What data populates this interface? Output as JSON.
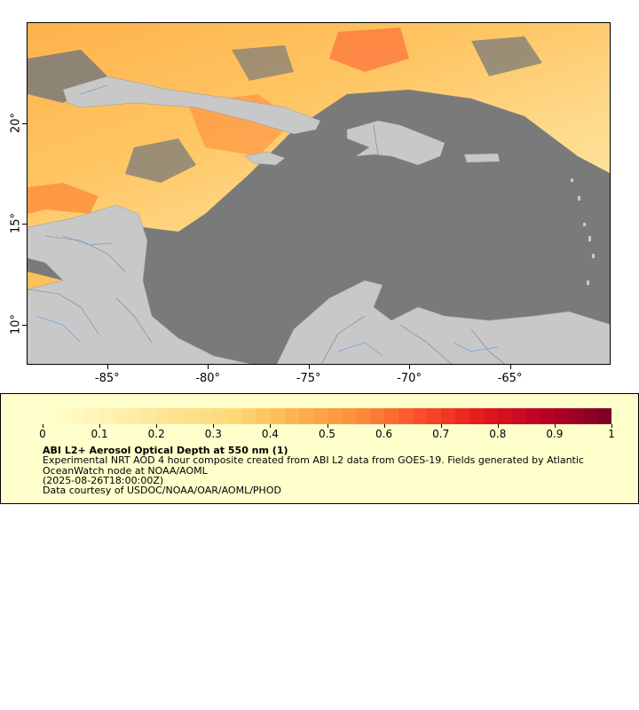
{
  "map": {
    "y_ticks": [
      {
        "label": "20°",
        "lat": 20
      },
      {
        "label": "15°",
        "lat": 15
      },
      {
        "label": "10°",
        "lat": 10
      }
    ],
    "x_ticks": [
      {
        "label": "-85°",
        "lon": -85
      },
      {
        "label": "-80°",
        "lon": -80
      },
      {
        "label": "-75°",
        "lon": -75
      },
      {
        "label": "-70°",
        "lon": -70
      },
      {
        "label": "-65°",
        "lon": -65
      }
    ],
    "lon_range": [
      -89.0,
      -60.0
    ],
    "lat_range": [
      8.0,
      25.0
    ],
    "colors": {
      "ocean_nodata": "#7a7a7a",
      "land": "#c8c8c8",
      "borders": "#7f7f7f",
      "rivers": "#6fa0d8"
    }
  },
  "legend": {
    "colorbar_ticks": [
      "0",
      "0.1",
      "0.2",
      "0.3",
      "0.4",
      "0.5",
      "0.6",
      "0.7",
      "0.8",
      "0.9",
      "1"
    ],
    "colorbar_range": [
      0,
      1
    ],
    "colormap": [
      "#ffffcc",
      "#fff1b0",
      "#fee391",
      "#fed976",
      "#feb24c",
      "#fd8d3c",
      "#fc4e2a",
      "#e31a1c",
      "#bd0026",
      "#800026"
    ],
    "title": "ABI L2+ Aerosol Optical Depth at 550 nm (1)",
    "description": "Experimental NRT AOD 4 hour composite created from ABI L2 data from GOES-19. Fields generated by Atlantic OceanWatch node at NOAA/AOML",
    "date": "(2025-08-26T18:00:00Z)",
    "credit": "Data courtesy of USDOC/NOAA/OAR/AOML/PHOD"
  }
}
